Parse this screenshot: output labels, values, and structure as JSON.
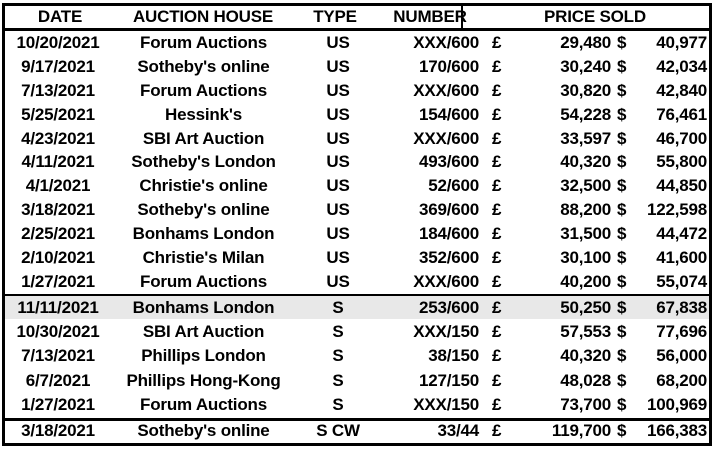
{
  "colors": {
    "background": "#ffffff",
    "border": "#000000",
    "text": "#000000",
    "highlight_row": "#e8e8e8"
  },
  "currency": {
    "gbp": "£",
    "usd": "$"
  },
  "header": {
    "date": "DATE",
    "house": "AUCTION HOUSE",
    "type": "TYPE",
    "number": "NUMBER",
    "price_sold": "PRICE SOLD"
  },
  "rows": [
    {
      "date": "10/20/2021",
      "house": "Forum Auctions",
      "type": "US",
      "number": "XXX/600",
      "gbp": "29,480",
      "usd": "40,977",
      "highlight": false,
      "rule_above": null
    },
    {
      "date": "9/17/2021",
      "house": "Sotheby's online",
      "type": "US",
      "number": "170/600",
      "gbp": "30,240",
      "usd": "42,034",
      "highlight": false,
      "rule_above": null
    },
    {
      "date": "7/13/2021",
      "house": "Forum Auctions",
      "type": "US",
      "number": "XXX/600",
      "gbp": "30,820",
      "usd": "42,840",
      "highlight": false,
      "rule_above": null
    },
    {
      "date": "5/25/2021",
      "house": "Hessink's",
      "type": "US",
      "number": "154/600",
      "gbp": "54,228",
      "usd": "76,461",
      "highlight": false,
      "rule_above": null
    },
    {
      "date": "4/23/2021",
      "house": "SBI Art Auction",
      "type": "US",
      "number": "XXX/600",
      "gbp": "33,597",
      "usd": "46,700",
      "highlight": false,
      "rule_above": null
    },
    {
      "date": "4/11/2021",
      "house": "Sotheby's London",
      "type": "US",
      "number": "493/600",
      "gbp": "40,320",
      "usd": "55,800",
      "highlight": false,
      "rule_above": null
    },
    {
      "date": "4/1/2021",
      "house": "Christie's online",
      "type": "US",
      "number": "52/600",
      "gbp": "32,500",
      "usd": "44,850",
      "highlight": false,
      "rule_above": null
    },
    {
      "date": "3/18/2021",
      "house": "Sotheby's online",
      "type": "US",
      "number": "369/600",
      "gbp": "88,200",
      "usd": "122,598",
      "highlight": false,
      "rule_above": null
    },
    {
      "date": "2/25/2021",
      "house": "Bonhams London",
      "type": "US",
      "number": "184/600",
      "gbp": "31,500",
      "usd": "44,472",
      "highlight": false,
      "rule_above": null
    },
    {
      "date": "2/10/2021",
      "house": "Christie's Milan",
      "type": "US",
      "number": "352/600",
      "gbp": "30,100",
      "usd": "41,600",
      "highlight": false,
      "rule_above": null
    },
    {
      "date": "1/27/2021",
      "house": "Forum Auctions",
      "type": "US",
      "number": "XXX/600",
      "gbp": "40,200",
      "usd": "55,074",
      "highlight": false,
      "rule_above": null
    },
    {
      "date": "11/11/2021",
      "house": "Bonhams London",
      "type": "S",
      "number": "253/600",
      "gbp": "50,250",
      "usd": "67,838",
      "highlight": true,
      "rule_above": "medium"
    },
    {
      "date": "10/30/2021",
      "house": "SBI Art Auction",
      "type": "S",
      "number": "XXX/150",
      "gbp": "57,553",
      "usd": "77,696",
      "highlight": false,
      "rule_above": null
    },
    {
      "date": "7/13/2021",
      "house": "Phillips London",
      "type": "S",
      "number": "38/150",
      "gbp": "40,320",
      "usd": "56,000",
      "highlight": false,
      "rule_above": null
    },
    {
      "date": "6/7/2021",
      "house": "Phillips Hong-Kong",
      "type": "S",
      "number": "127/150",
      "gbp": "48,028",
      "usd": "68,200",
      "highlight": false,
      "rule_above": null
    },
    {
      "date": "1/27/2021",
      "house": "Forum Auctions",
      "type": "S",
      "number": "XXX/150",
      "gbp": "73,700",
      "usd": "100,969",
      "highlight": false,
      "rule_above": null
    },
    {
      "date": "3/18/2021",
      "house": "Sotheby's online",
      "type": "S CW",
      "number": "33/44",
      "gbp": "119,700",
      "usd": "166,383",
      "highlight": false,
      "rule_above": "thick"
    }
  ]
}
